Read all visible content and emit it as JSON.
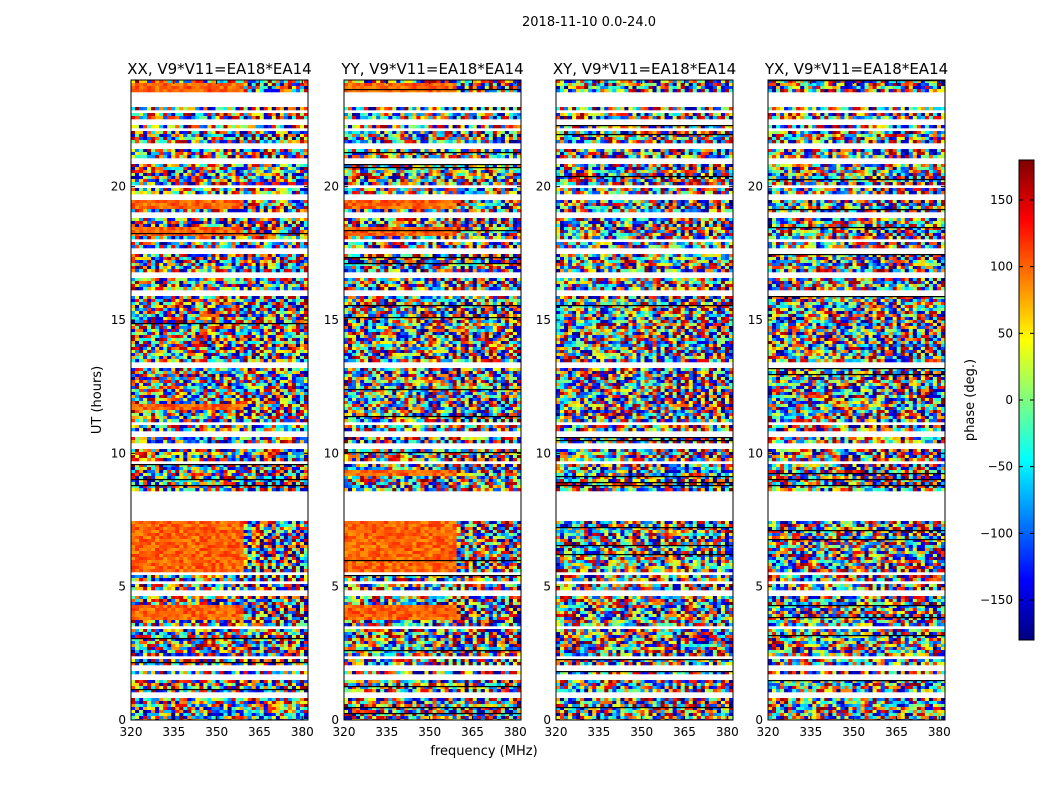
{
  "chart_data": {
    "type": "heatmap",
    "suptitle": "2018-11-10 0.0-24.0",
    "xlabel": "frequency (MHz)",
    "ylabel": "UT (hours)",
    "xlim": [
      320,
      382
    ],
    "ylim": [
      0,
      24
    ],
    "xticks": [
      320,
      335,
      350,
      365,
      380
    ],
    "yticks": [
      0,
      5,
      10,
      15,
      20
    ],
    "colorbar": {
      "label": "phase (deg.)",
      "range": [
        -180,
        180
      ],
      "ticks": [
        150,
        100,
        50,
        0,
        -50,
        -100,
        -150
      ],
      "tick_labels": [
        "150",
        "100",
        "50",
        "0",
        "−50",
        "−100",
        "−150"
      ],
      "colormap": "jet",
      "stops": [
        "#00007f",
        "#0000ff",
        "#007fff",
        "#00ffff",
        "#7fff7f",
        "#ffff00",
        "#ff7f00",
        "#ff0000",
        "#7f0000"
      ]
    },
    "flagged_gaps_hours": [
      [
        0.85,
        1.05
      ],
      [
        1.45,
        1.7
      ],
      [
        1.85,
        2.05
      ],
      [
        2.25,
        2.45
      ],
      [
        3.45,
        3.55
      ],
      [
        4.7,
        4.85
      ],
      [
        5.05,
        5.2
      ],
      [
        5.4,
        5.55
      ],
      [
        7.45,
        8.55
      ],
      [
        9.6,
        9.75
      ],
      [
        10.2,
        10.4
      ],
      [
        10.6,
        10.8
      ],
      [
        11.05,
        11.2
      ],
      [
        13.2,
        13.4
      ],
      [
        15.9,
        16.1
      ],
      [
        16.6,
        16.8
      ],
      [
        17.45,
        17.65
      ],
      [
        17.9,
        18.05
      ],
      [
        18.8,
        19.0
      ],
      [
        19.55,
        19.7
      ],
      [
        19.95,
        20.05
      ],
      [
        20.85,
        21.05
      ],
      [
        21.45,
        21.6
      ],
      [
        22.1,
        22.25
      ],
      [
        22.35,
        22.5
      ],
      [
        22.75,
        22.9
      ],
      [
        23.0,
        23.6
      ]
    ],
    "panels": [
      {
        "title": "XX, V9*V11=EA18*EA14",
        "orange_bands_hours": [
          [
            5.55,
            7.45
          ],
          [
            3.75,
            4.3
          ],
          [
            18.1,
            18.5
          ],
          [
            19.2,
            19.5
          ],
          [
            23.6,
            23.9
          ],
          [
            11.6,
            11.8
          ]
        ]
      },
      {
        "title": "YY, V9*V11=EA18*EA14",
        "orange_bands_hours": [
          [
            5.55,
            7.45
          ],
          [
            3.75,
            4.3
          ],
          [
            18.1,
            18.5
          ],
          [
            19.2,
            19.5
          ],
          [
            23.6,
            23.9
          ],
          [
            9.2,
            9.4
          ]
        ]
      },
      {
        "title": "XY, V9*V11=EA18*EA14",
        "orange_bands_hours": []
      },
      {
        "title": "YX, V9*V11=EA18*EA14",
        "orange_bands_hours": []
      }
    ]
  }
}
